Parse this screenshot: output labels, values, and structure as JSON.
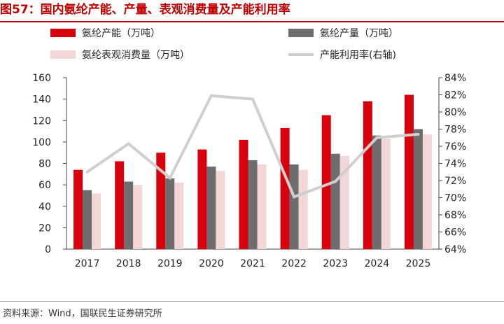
{
  "title": "图57：国内氨纶产能、产量、表观消费量及产能利用率",
  "source": "资料来源：Wind，国联民生证券研究所",
  "colors": {
    "capacity": "#d9000d",
    "output": "#6d6d6d",
    "consumption": "#f3d6d6",
    "utilization": "#cfcfcf",
    "title": "#c00000"
  },
  "chart_data": {
    "type": "bar",
    "categories": [
      "2017",
      "2018",
      "2019",
      "2020",
      "2021",
      "2022",
      "2023",
      "2024",
      "2025"
    ],
    "series": [
      {
        "name": "氨纶产能（万吨）",
        "values": [
          74,
          82,
          90,
          93,
          102,
          113,
          125,
          138,
          144
        ],
        "type": "bar",
        "axis": "left"
      },
      {
        "name": "氨纶产量（万吨）",
        "values": [
          55,
          63,
          66,
          77,
          83,
          79,
          89,
          106,
          112
        ],
        "type": "bar",
        "axis": "left"
      },
      {
        "name": "氨纶表观消费量（万吨）",
        "values": [
          52,
          60,
          62,
          73,
          79,
          74,
          87,
          103,
          107
        ],
        "type": "bar",
        "axis": "left"
      },
      {
        "name": "产能利用率(右轴)",
        "values": [
          73.0,
          76.3,
          72.3,
          81.9,
          81.5,
          70.1,
          71.9,
          77.0,
          77.4
        ],
        "type": "line",
        "axis": "right"
      }
    ],
    "ylim": [
      0,
      160
    ],
    "y_ticks": [
      "0",
      "20",
      "40",
      "60",
      "80",
      "100",
      "120",
      "140",
      "160"
    ],
    "y2lim": [
      64,
      84
    ],
    "y2_ticks": [
      "64%",
      "66%",
      "68%",
      "70%",
      "72%",
      "74%",
      "76%",
      "78%",
      "80%",
      "82%",
      "84%"
    ],
    "grid": false,
    "legend_position": "top"
  }
}
